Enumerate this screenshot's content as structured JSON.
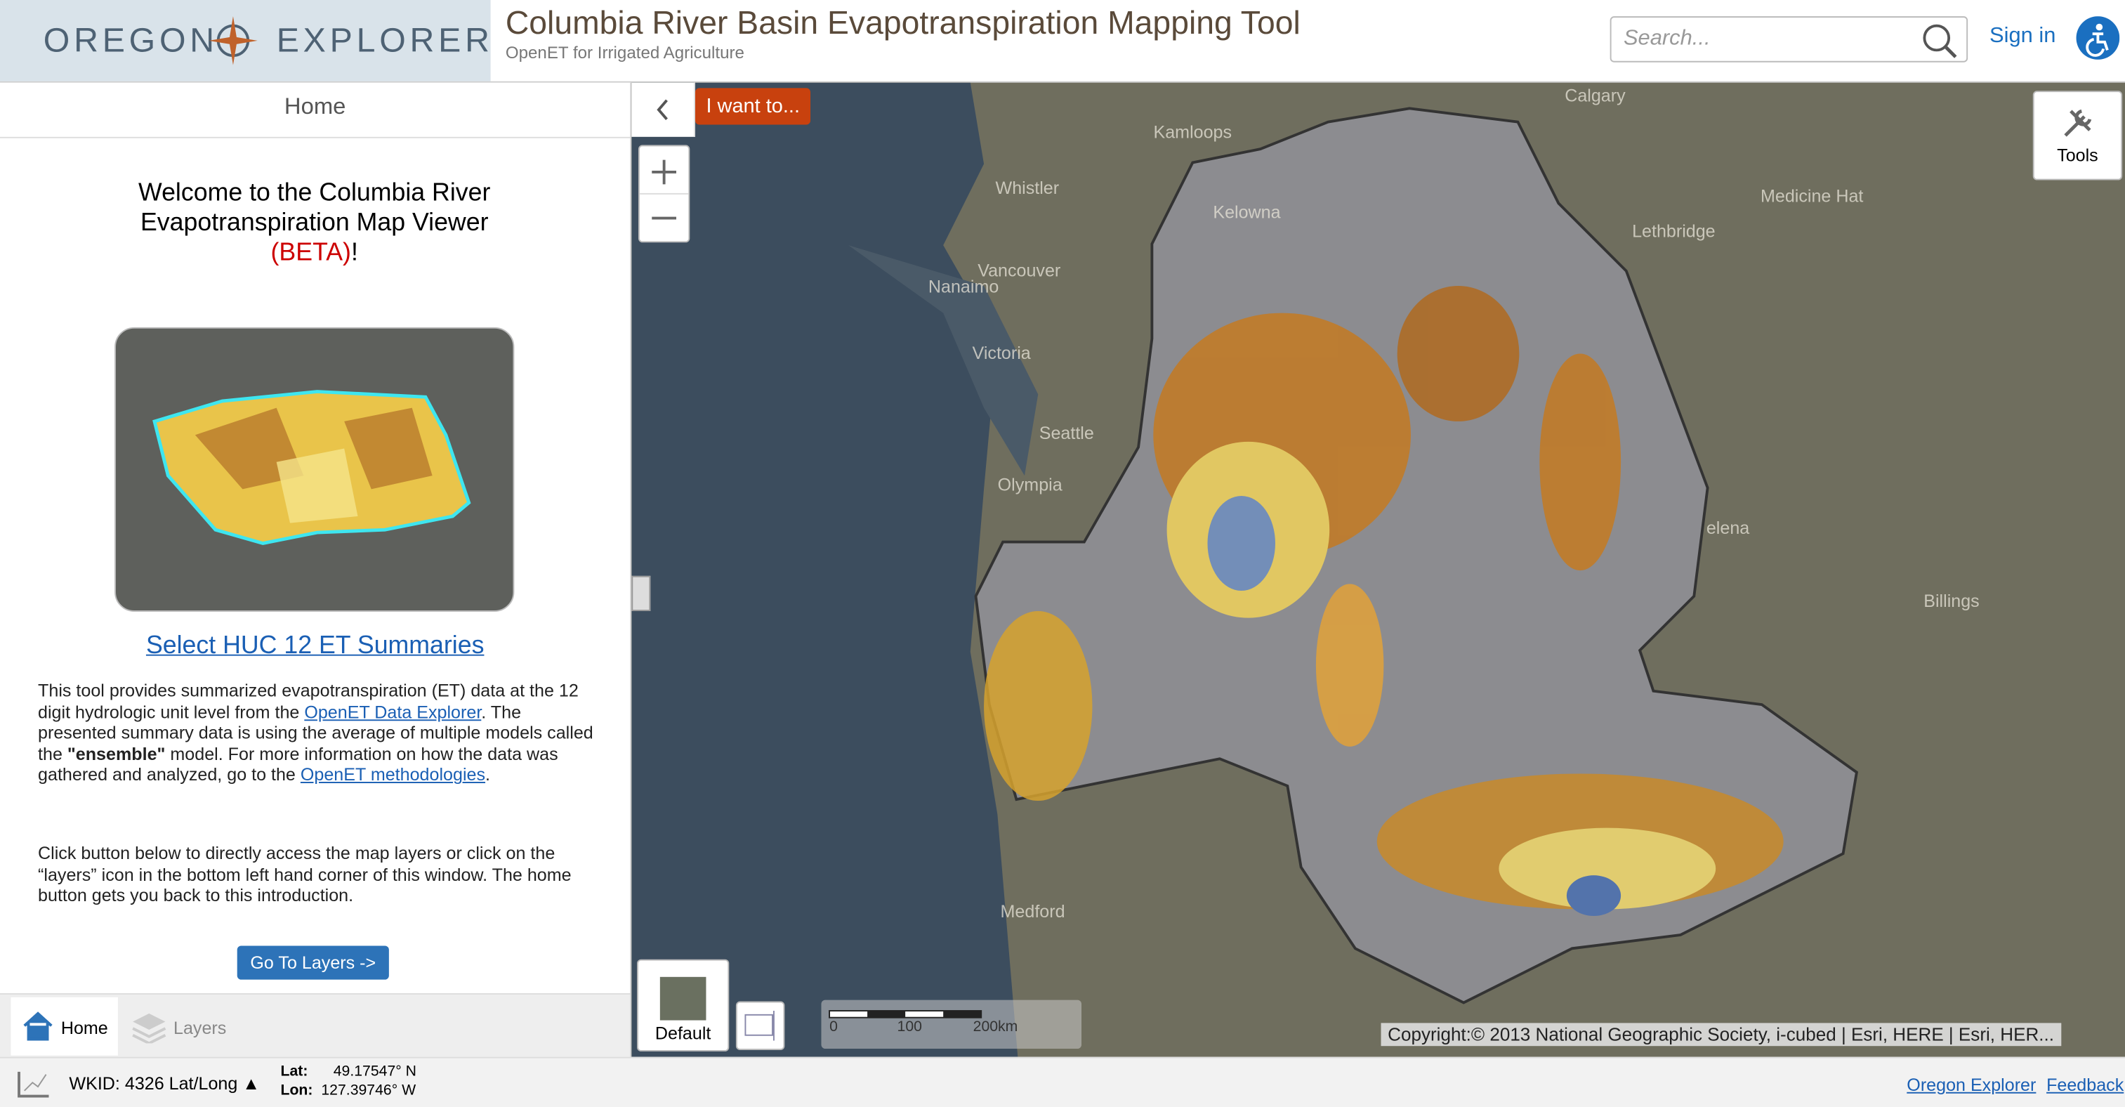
{
  "header": {
    "logo_left": "OREGON",
    "logo_right": "EXPLORER",
    "title": "Columbia River Basin Evapotranspiration Mapping Tool",
    "subtitle": "OpenET for Irrigated Agriculture",
    "search_placeholder": "Search...",
    "sign_in": "Sign in"
  },
  "panel": {
    "title": "Home",
    "welcome": "Welcome to the Columbia River Evapotranspiration Map Viewer",
    "beta": "(BETA)",
    "welcome_end": "!",
    "summaries_link": "Select HUC 12 ET Summaries",
    "p1": {
      "a": "This tool provides summarized evapotranspiration (ET) data at the 12 digit hydrologic unit level from the ",
      "link1": "OpenET Data Explorer",
      "b": ". The presented summary data is using the average of multiple models called the ",
      "bold": "\"ensemble\"",
      "c": " model. For more information on how the data was gathered and analyzed, go to the ",
      "link2": "OpenET methodologies",
      "d": "."
    },
    "p2": "Click button below to directly access the map layers or click on the “layers” icon in the bottom left hand corner of this window. The home button gets you back to this introduction.",
    "button": "Go To Layers ->",
    "tabs": [
      "Home",
      "Layers"
    ]
  },
  "map": {
    "i_want_to": "I want to...",
    "tools": "Tools",
    "basemap": "Default",
    "scale_ticks": [
      "0",
      "100",
      "200km"
    ],
    "copyright": "Copyright:© 2013 National Geographic Society, i-cubed | Esri, HERE | Esri, HER...",
    "places": [
      "Calgary",
      "Kamloops",
      "Whistler",
      "Kelowna",
      "Medicine Hat",
      "Lethbridge",
      "Vancouver",
      "Nanaimo",
      "Victoria",
      "Seattle",
      "Olympia",
      "elena",
      "Billings",
      "Medford"
    ]
  },
  "footer": {
    "wkid": "WKID: 4326 Lat/Long ▲",
    "lat_label": "Lat:",
    "lat": "49.17547° N",
    "lon_label": "Lon:",
    "lon": "127.39746° W",
    "links": [
      "Oregon Explorer",
      "Feedback"
    ]
  }
}
